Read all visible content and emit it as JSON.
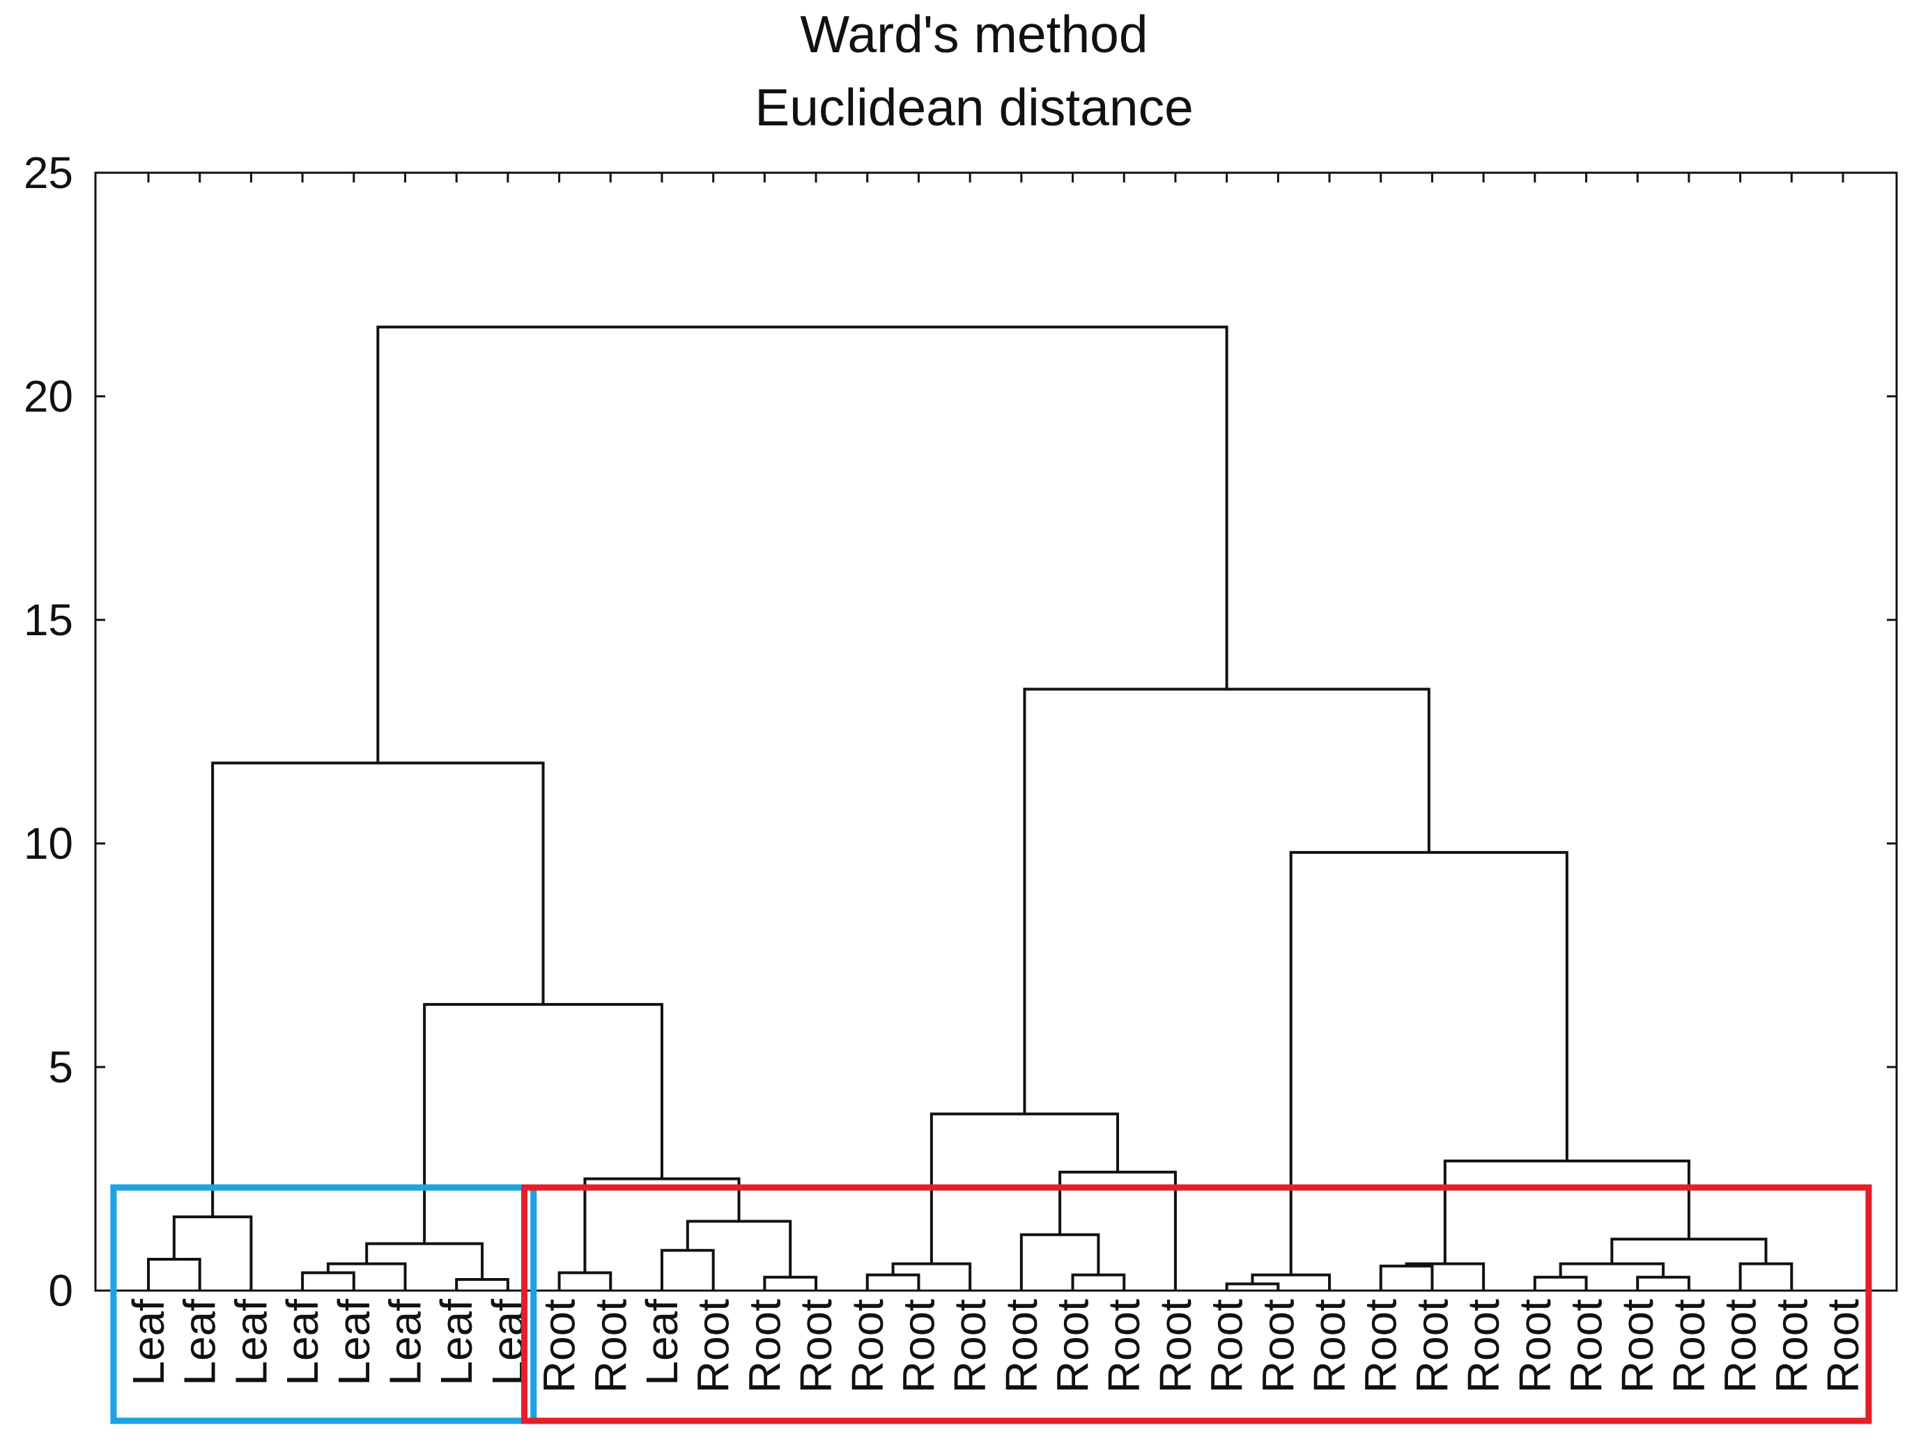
{
  "chart_data": {
    "type": "dendrogram",
    "title": "Ward's method",
    "subtitle": "Euclidean distance",
    "ylim": [
      0,
      25
    ],
    "yticks": [
      0,
      5,
      10,
      15,
      20,
      25
    ],
    "ytick_labels": [
      "0",
      "5",
      "10",
      "15",
      "20",
      "25"
    ],
    "grid": false,
    "leaves": [
      "Leaf",
      "Leaf",
      "Leaf",
      "Leaf",
      "Leaf",
      "Leaf",
      "Leaf",
      "Leaf",
      "Root",
      "Root",
      "Leaf",
      "Root",
      "Root",
      "Root",
      "Root",
      "Root",
      "Root",
      "Root",
      "Root",
      "Root",
      "Root",
      "Root",
      "Root",
      "Root",
      "Root",
      "Root",
      "Root",
      "Root",
      "Root",
      "Root",
      "Root",
      "Root",
      "Root",
      "Root"
    ],
    "merges": [
      {
        "children": [
          0,
          1
        ],
        "height": 0.7
      },
      {
        "children": [
          "L0",
          2
        ],
        "height": 1.65
      },
      {
        "children": [
          3,
          4
        ],
        "height": 0.4
      },
      {
        "children": [
          "L2",
          5
        ],
        "height": 0.6
      },
      {
        "children": [
          6,
          7
        ],
        "height": 0.25
      },
      {
        "children": [
          "L3",
          "L4"
        ],
        "height": 1.05
      },
      {
        "children": [
          8,
          9
        ],
        "height": 0.4
      },
      {
        "children": [
          10,
          11
        ],
        "height": 0.9
      },
      {
        "children": [
          12,
          13
        ],
        "height": 0.3
      },
      {
        "children": [
          "L7",
          "L8"
        ],
        "height": 1.55
      },
      {
        "children": [
          "L6",
          "L9"
        ],
        "height": 2.5
      },
      {
        "children": [
          "L5",
          "L10"
        ],
        "height": 6.4
      },
      {
        "children": [
          "L1",
          "L11"
        ],
        "height": 11.8
      },
      {
        "children": [
          14,
          15
        ],
        "height": 0.35
      },
      {
        "children": [
          "L13",
          16
        ],
        "height": 0.6
      },
      {
        "children": [
          18,
          19
        ],
        "height": 0.35
      },
      {
        "children": [
          17,
          "L15"
        ],
        "height": 1.25
      },
      {
        "children": [
          "L16",
          20
        ],
        "height": 2.65
      },
      {
        "children": [
          "L14",
          "L17"
        ],
        "height": 3.95
      },
      {
        "children": [
          21,
          22
        ],
        "height": 0.15
      },
      {
        "children": [
          "L19",
          23
        ],
        "height": 0.35
      },
      {
        "children": [
          24,
          25
        ],
        "height": 0.55
      },
      {
        "children": [
          "L21",
          26
        ],
        "height": 0.6
      },
      {
        "children": [
          27,
          28
        ],
        "height": 0.3
      },
      {
        "children": [
          29,
          30
        ],
        "height": 0.3
      },
      {
        "children": [
          "L23",
          "L24"
        ],
        "height": 0.6
      },
      {
        "children": [
          31,
          32
        ],
        "height": 0.6
      },
      {
        "children": [
          "L25",
          "L26"
        ],
        "height": 1.15
      },
      {
        "children": [
          "L22",
          "L27"
        ],
        "height": 2.9
      },
      {
        "children": [
          "L20",
          "L28"
        ],
        "height": 9.8
      },
      {
        "children": [
          "L18",
          "L29"
        ],
        "height": 13.45
      },
      {
        "children": [
          "L12",
          "L30"
        ],
        "height": 21.55
      }
    ],
    "highlight_boxes": [
      {
        "name": "leaf-cluster-box",
        "color": "#1ba3e3",
        "from_leaf": 0,
        "to_leaf": 7
      },
      {
        "name": "root-cluster-box",
        "color": "#e3202a",
        "from_leaf": 8,
        "to_leaf": 33
      }
    ]
  },
  "colors": {
    "line": "#111111",
    "leaf_box": "#1ba3e3",
    "root_box": "#e3202a"
  }
}
